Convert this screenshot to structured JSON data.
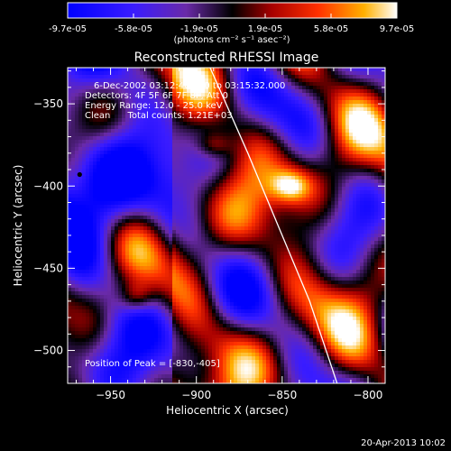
{
  "colorbar": {
    "min_label": "-9.7e-05",
    "tick_labels": [
      "-9.7e-05",
      "-5.8e-05",
      "-1.9e-05",
      "1.9e-05",
      "5.8e-05",
      "9.7e-05"
    ],
    "units_label": "(photons cm⁻² s⁻¹ asec⁻²)"
  },
  "chart_data": {
    "type": "heatmap",
    "title": "Reconstructed RHESSI Image",
    "xlabel": "Heliocentric X (arcsec)",
    "ylabel": "Heliocentric Y (arcsec)",
    "xlim": [
      -975,
      -790
    ],
    "ylim": [
      -520,
      -328
    ],
    "x_ticks": [
      -950,
      -900,
      -850,
      -800
    ],
    "y_ticks": [
      -350,
      -400,
      -450,
      -500
    ],
    "value_range": [
      -9.7e-05,
      9.7e-05
    ],
    "peak_position": [
      -830,
      -405
    ],
    "marker": [
      -968,
      -393
    ],
    "limb_curve": [
      [
        -892,
        -328
      ],
      [
        -870,
        -380
      ],
      [
        -850,
        -430
      ],
      [
        -834,
        -470
      ],
      [
        -818,
        -520
      ]
    ],
    "annotations": [
      "6-Dec-2002 03:12:40.000 to 03:15:32.000",
      "Detectors: 4F 5F 6F 7F 8F, Att 0",
      "Energy Range: 12.0 - 25.0 keV",
      "Clean      Total counts: 1.21E+03"
    ],
    "peak_label": "Position of Peak = [-830,-405]"
  },
  "footer": {
    "timestamp": "20-Apr-2013 10:02"
  }
}
